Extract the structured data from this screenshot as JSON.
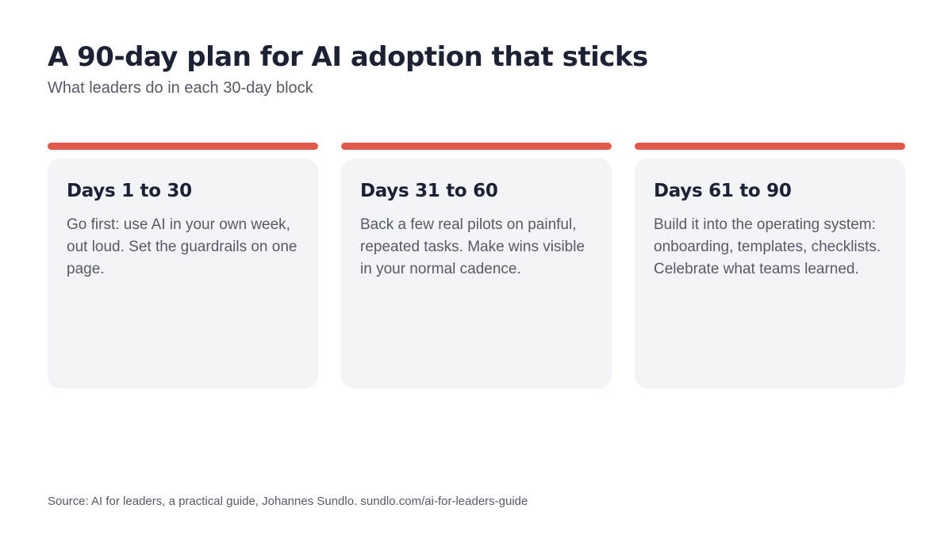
{
  "header": {
    "title": "A 90-day plan for AI adoption that sticks",
    "subtitle": "What leaders do in each 30-day block"
  },
  "colors": {
    "accent": "#e05a4b",
    "card_background": "#f3f4f8",
    "heading_text": "#1c2233",
    "body_text": "#555a66"
  },
  "phases": [
    {
      "heading": "Days 1 to 30",
      "body": "Go first: use AI in your own week, out loud. Set the guardrails on one page."
    },
    {
      "heading": "Days 31 to 60",
      "body": "Back a few real pilots on painful, repeated tasks. Make wins visible in your normal cadence."
    },
    {
      "heading": "Days 61 to 90",
      "body": "Build it into the operating system: onboarding, templates, checklists. Celebrate what teams learned."
    }
  ],
  "footer": {
    "source": "Source: AI for leaders, a practical guide, Johannes Sundlo. sundlo.com/ai-for-leaders-guide"
  }
}
